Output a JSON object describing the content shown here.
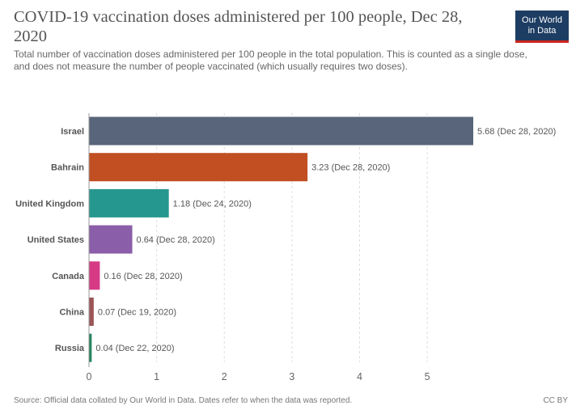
{
  "header": {
    "title": "COVID-19 vaccination doses administered per 100 people, Dec 28, 2020",
    "subtitle": "Total number of vaccination doses administered per 100 people in the total population. This is counted as a single dose, and does not measure the number of people vaccinated (which usually requires two doses).",
    "logo_line1": "Our World",
    "logo_line2": "in Data",
    "logo_colors": {
      "background": "#1d3d63",
      "underline": "#ce261e"
    }
  },
  "footer": {
    "source": "Source: Official data collated by Our World in Data. Dates refer to when the data was reported.",
    "license": "CC BY"
  },
  "chart_data": {
    "type": "bar",
    "orientation": "horizontal",
    "title": "COVID-19 vaccination doses administered per 100 people, Dec 28, 2020",
    "xlim": [
      0,
      5.68
    ],
    "xticks": [
      0,
      1,
      2,
      3,
      4,
      5
    ],
    "grid": "vertical dashed",
    "legend": "none",
    "bars": [
      {
        "category": "Israel",
        "value": 5.68,
        "label": "5.68 (Dec 28, 2020)",
        "color": "#58657a"
      },
      {
        "category": "Bahrain",
        "value": 3.23,
        "label": "3.23 (Dec 28, 2020)",
        "color": "#c14f22"
      },
      {
        "category": "United Kingdom",
        "value": 1.18,
        "label": "1.18 (Dec 24, 2020)",
        "color": "#26978e"
      },
      {
        "category": "United States",
        "value": 0.64,
        "label": "0.64 (Dec 28, 2020)",
        "color": "#8a5ea8"
      },
      {
        "category": "Canada",
        "value": 0.16,
        "label": "0.16 (Dec 28, 2020)",
        "color": "#d63a85"
      },
      {
        "category": "China",
        "value": 0.07,
        "label": "0.07 (Dec 19, 2020)",
        "color": "#9b5556"
      },
      {
        "category": "Russia",
        "value": 0.04,
        "label": "0.04 (Dec 22, 2020)",
        "color": "#22855e"
      }
    ]
  }
}
